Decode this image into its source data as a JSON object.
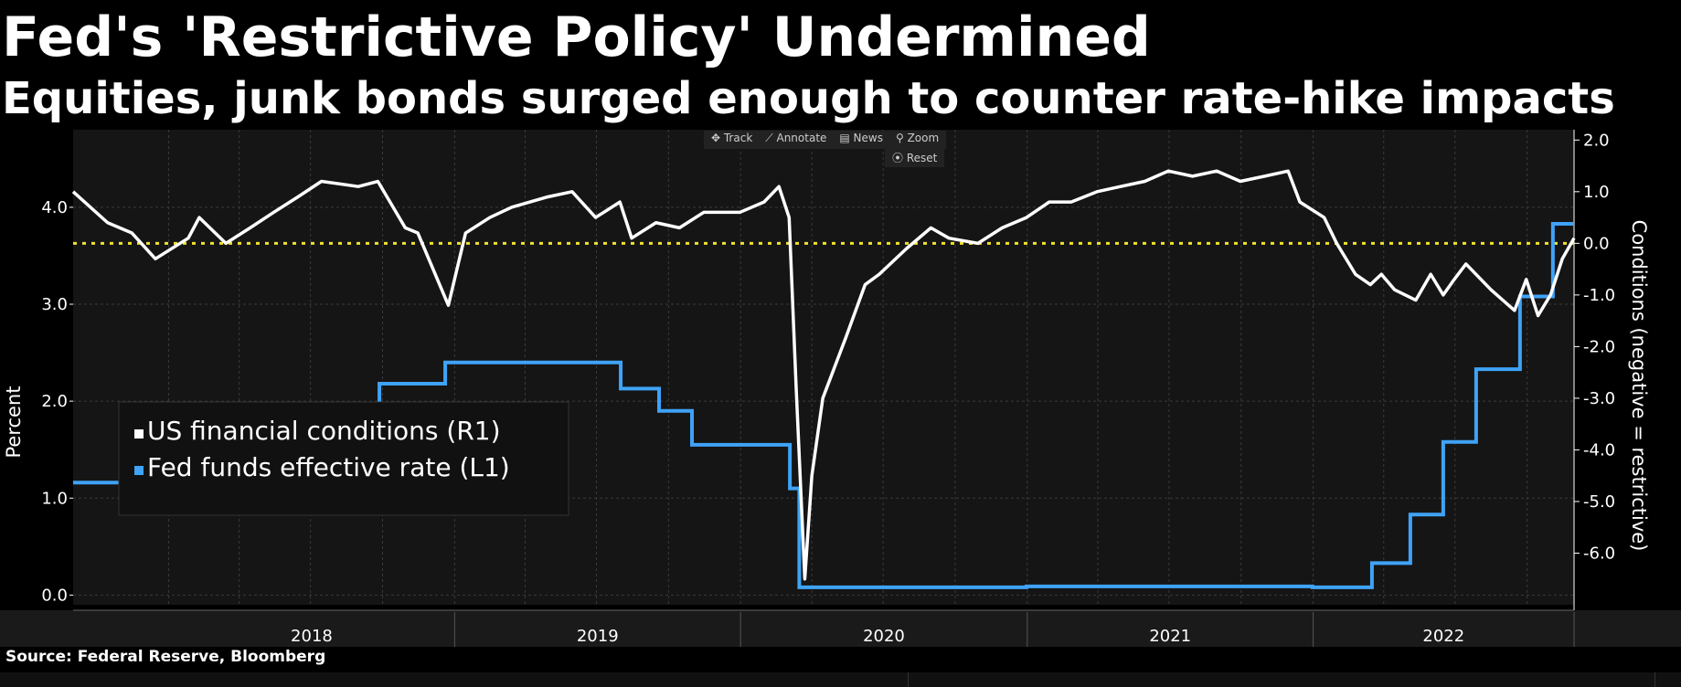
{
  "title": "Fed's 'Restrictive Policy' Undermined",
  "subtitle": "Equities, junk bonds surged enough to counter rate-hike impacts",
  "source": "Source: Federal Reserve, Bloomberg",
  "toolbar": {
    "track": "✥ Track",
    "annotate": "⟋ Annotate",
    "news": "▤ News",
    "zoom": "⚲ Zoom",
    "reset": "⦿ Reset"
  },
  "colors": {
    "background": "#151515",
    "conditions": "#ffffff",
    "fedfunds": "#3fa3f7",
    "zero_line": "#f2e12b",
    "grid": "#3a3a3a"
  },
  "chart_data": {
    "type": "line",
    "ylabel_left": "Percent",
    "ylabel_right": "Conditions (negative = restrictive)",
    "x_labels": [
      "2018",
      "2019",
      "2020",
      "2021",
      "2022"
    ],
    "x_range": [
      "2017-09-01",
      "2022-11-30"
    ],
    "ylim_left": [
      -0.1,
      4.8
    ],
    "ylim_right": [
      -7.0,
      2.2
    ],
    "left_ticks": [
      "0.0",
      "1.0",
      "2.0",
      "3.0",
      "4.0"
    ],
    "right_ticks": [
      "2.0",
      "1.0",
      "0.0",
      "-1.0",
      "-2.0",
      "-3.0",
      "-4.0",
      "-5.0",
      "-6.0"
    ],
    "reference_line": {
      "axis": "right",
      "value": 0.0,
      "style": "dotted"
    },
    "legend": {
      "position": "bottom-left",
      "entries": [
        "US financial conditions (R1)",
        "Fed funds effective rate (L1)"
      ]
    },
    "series": [
      {
        "name": "Fed funds effective rate (L1)",
        "axis": "left",
        "shape": "step",
        "x": [
          "2017-09-01",
          "2017-12-14",
          "2018-03-22",
          "2018-06-14",
          "2018-09-27",
          "2018-12-20",
          "2019-08-01",
          "2019-09-19",
          "2019-10-31",
          "2020-03-04",
          "2020-03-16",
          "2020-12-31",
          "2021-12-31",
          "2022-03-17",
          "2022-05-05",
          "2022-06-16",
          "2022-07-28",
          "2022-09-22",
          "2022-11-03",
          "2022-11-30"
        ],
        "y": [
          1.16,
          1.42,
          1.68,
          1.91,
          2.18,
          2.4,
          2.13,
          1.9,
          1.55,
          1.1,
          0.08,
          0.09,
          0.08,
          0.33,
          0.83,
          1.58,
          2.33,
          3.08,
          3.83,
          3.83
        ]
      },
      {
        "name": "US financial conditions (R1)",
        "axis": "right",
        "x": [
          "2017-09-01",
          "2017-10-15",
          "2017-11-15",
          "2017-12-15",
          "2018-01-26",
          "2018-02-09",
          "2018-03-15",
          "2018-04-15",
          "2018-05-15",
          "2018-06-15",
          "2018-07-15",
          "2018-08-31",
          "2018-09-25",
          "2018-10-30",
          "2018-11-15",
          "2018-12-24",
          "2019-01-15",
          "2019-02-15",
          "2019-03-15",
          "2019-04-30",
          "2019-05-31",
          "2019-06-30",
          "2019-07-31",
          "2019-08-15",
          "2019-09-15",
          "2019-10-15",
          "2019-11-15",
          "2019-12-31",
          "2020-01-31",
          "2020-02-19",
          "2020-03-03",
          "2020-03-12",
          "2020-03-23",
          "2020-04-01",
          "2020-04-15",
          "2020-05-15",
          "2020-06-08",
          "2020-06-26",
          "2020-07-31",
          "2020-08-31",
          "2020-09-23",
          "2020-10-30",
          "2020-11-30",
          "2020-12-31",
          "2021-01-29",
          "2021-02-26",
          "2021-03-31",
          "2021-04-30",
          "2021-05-31",
          "2021-06-30",
          "2021-07-31",
          "2021-08-31",
          "2021-09-30",
          "2021-10-31",
          "2021-11-30",
          "2021-12-15",
          "2022-01-15",
          "2022-01-31",
          "2022-02-24",
          "2022-03-15",
          "2022-03-29",
          "2022-04-15",
          "2022-05-12",
          "2022-05-31",
          "2022-06-16",
          "2022-06-30",
          "2022-07-15",
          "2022-08-16",
          "2022-09-15",
          "2022-09-30",
          "2022-10-15",
          "2022-10-31",
          "2022-11-15",
          "2022-11-30"
        ],
        "y": [
          1.0,
          0.4,
          0.2,
          -0.3,
          0.1,
          0.5,
          0.0,
          0.3,
          0.6,
          0.9,
          1.2,
          1.1,
          1.2,
          0.3,
          0.2,
          -1.2,
          0.2,
          0.5,
          0.7,
          0.9,
          1.0,
          0.5,
          0.8,
          0.1,
          0.4,
          0.3,
          0.6,
          0.6,
          0.8,
          1.1,
          0.5,
          -2.8,
          -6.5,
          -4.5,
          -3.0,
          -1.8,
          -0.8,
          -0.6,
          -0.1,
          0.3,
          0.1,
          0.0,
          0.3,
          0.5,
          0.8,
          0.8,
          1.0,
          1.1,
          1.2,
          1.4,
          1.3,
          1.4,
          1.2,
          1.3,
          1.4,
          0.8,
          0.5,
          0.0,
          -0.6,
          -0.8,
          -0.6,
          -0.9,
          -1.1,
          -0.6,
          -1.0,
          -0.7,
          -0.4,
          -0.9,
          -1.3,
          -0.7,
          -1.4,
          -1.0,
          -0.3,
          0.1
        ]
      }
    ]
  }
}
